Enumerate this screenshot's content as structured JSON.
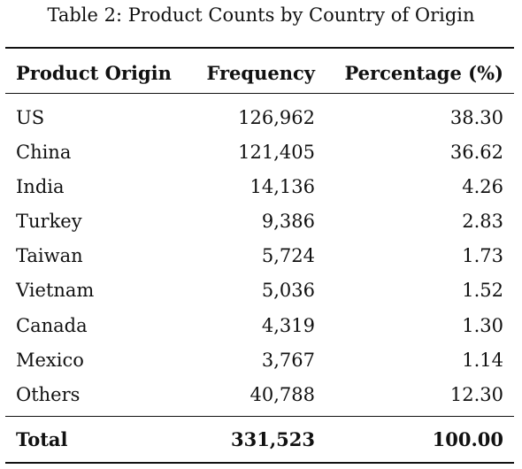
{
  "caption": "Table 2: Product Counts by Country of Origin",
  "table": {
    "headers": [
      "Product Origin",
      "Frequency",
      "Percentage (%)"
    ],
    "rows": [
      [
        "US",
        "126,962",
        "38.30"
      ],
      [
        "China",
        "121,405",
        "36.62"
      ],
      [
        "India",
        "14,136",
        "4.26"
      ],
      [
        "Turkey",
        "9,386",
        "2.83"
      ],
      [
        "Taiwan",
        "5,724",
        "1.73"
      ],
      [
        "Vietnam",
        "5,036",
        "1.52"
      ],
      [
        "Canada",
        "4,319",
        "1.30"
      ],
      [
        "Mexico",
        "3,767",
        "1.14"
      ],
      [
        "Others",
        "40,788",
        "12.30"
      ]
    ],
    "total": [
      "Total",
      "331,523",
      "100.00"
    ]
  }
}
